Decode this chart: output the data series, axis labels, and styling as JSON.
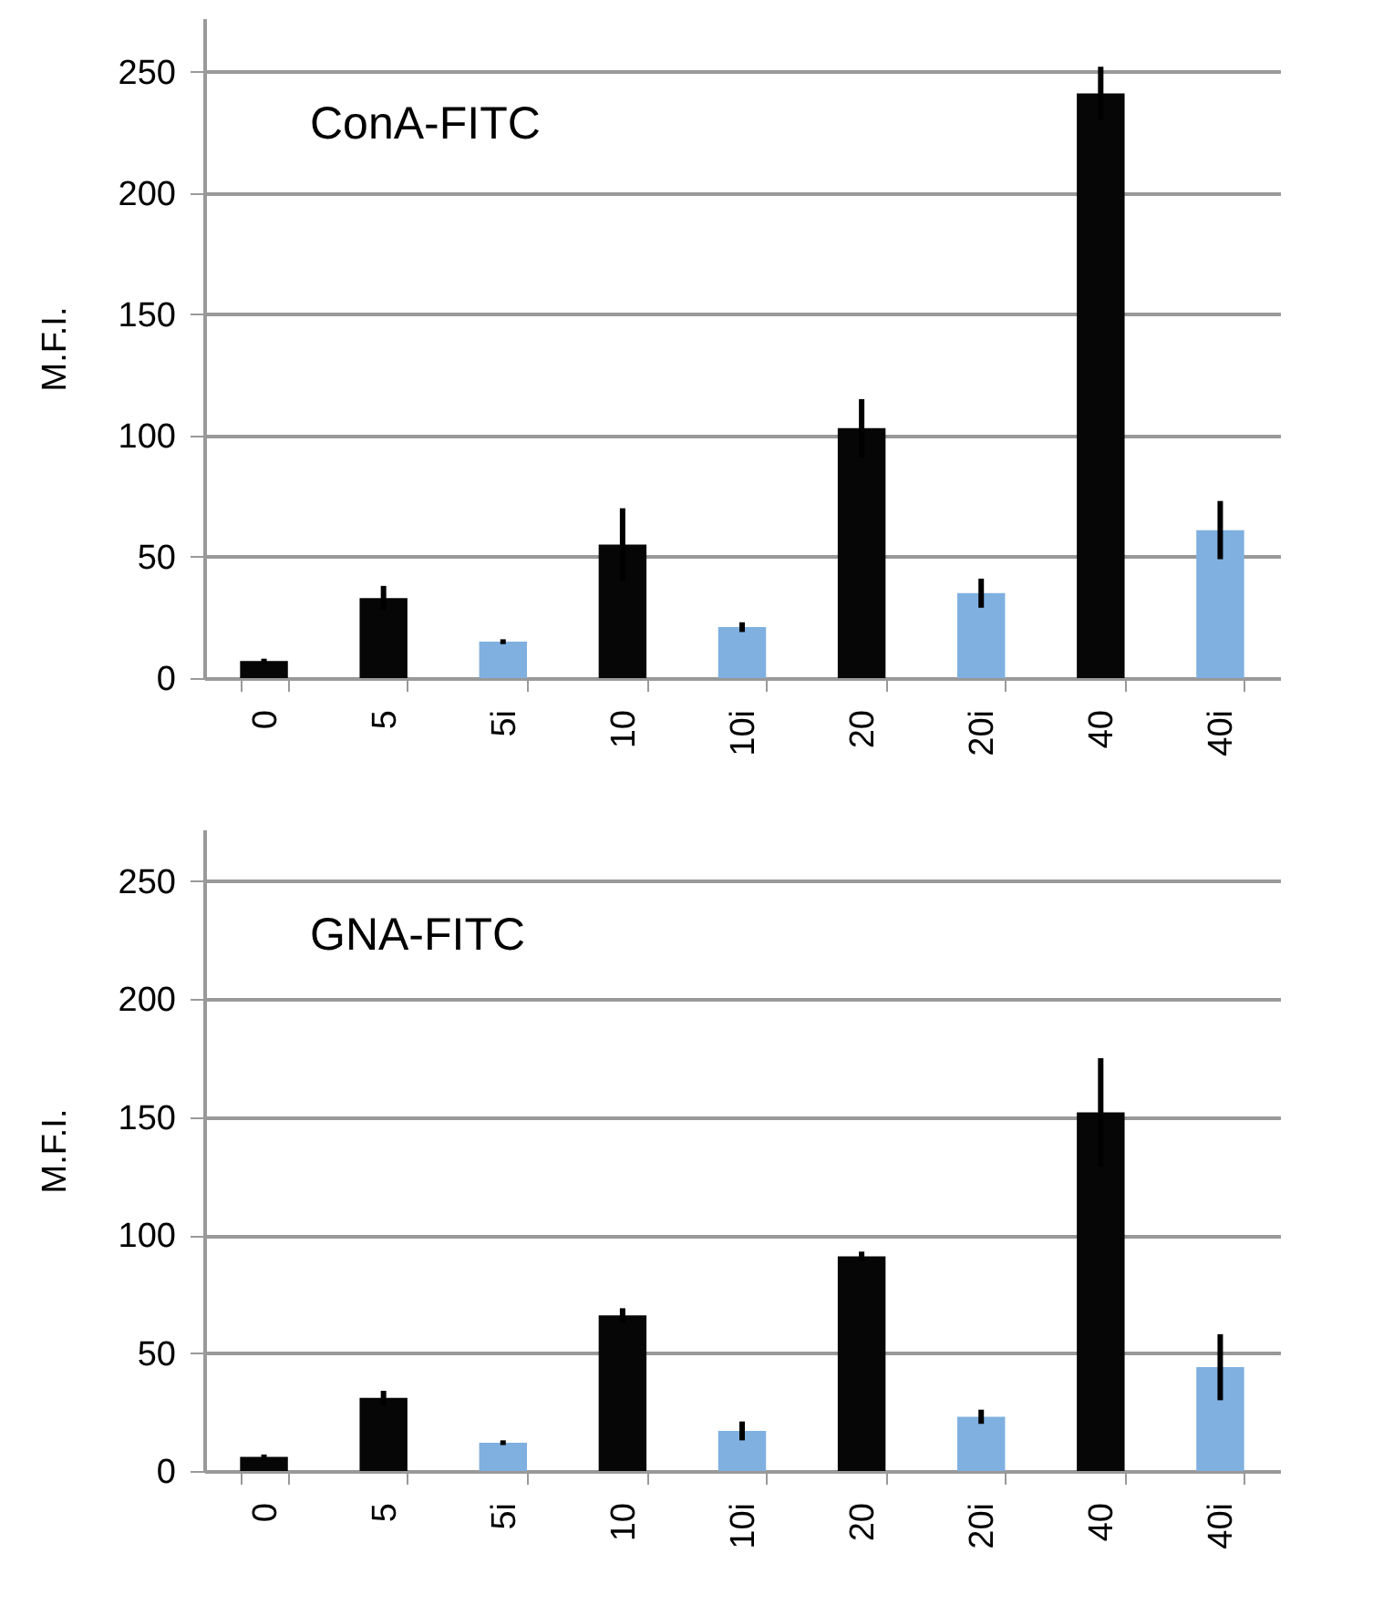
{
  "chart_data": [
    {
      "type": "bar",
      "annotations": [
        "ConA-FITC"
      ],
      "ylabel": "M.F.I.",
      "categories": [
        "0",
        "5",
        "5i",
        "10",
        "10i",
        "20",
        "20i",
        "40",
        "40i"
      ],
      "values": [
        7,
        33,
        15,
        55,
        21,
        103,
        35,
        241,
        61
      ],
      "colors": [
        "#060606",
        "#060606",
        "#7fb0e0",
        "#060606",
        "#7fb0e0",
        "#060606",
        "#7fb0e0",
        "#060606",
        "#7fb0e0"
      ],
      "errors": [
        1,
        5,
        1,
        15,
        2,
        12,
        6,
        11,
        12
      ],
      "ylim": [
        0,
        272
      ],
      "yticks": [
        0,
        50,
        100,
        150,
        200,
        250
      ],
      "grid": "y"
    },
    {
      "type": "bar",
      "annotations": [
        "GNA-FITC"
      ],
      "ylabel": "M.F.I.",
      "categories": [
        "0",
        "5",
        "5i",
        "10",
        "10i",
        "20",
        "20i",
        "40",
        "40i"
      ],
      "values": [
        6,
        31,
        12,
        66,
        17,
        91,
        23,
        152,
        44
      ],
      "colors": [
        "#060606",
        "#060606",
        "#7fb0e0",
        "#060606",
        "#7fb0e0",
        "#060606",
        "#7fb0e0",
        "#060606",
        "#7fb0e0"
      ],
      "errors": [
        1,
        3,
        1,
        3,
        4,
        2,
        3,
        23,
        14
      ],
      "ylim": [
        0,
        272
      ],
      "yticks": [
        0,
        50,
        100,
        150,
        200,
        250
      ],
      "grid": "y"
    }
  ]
}
